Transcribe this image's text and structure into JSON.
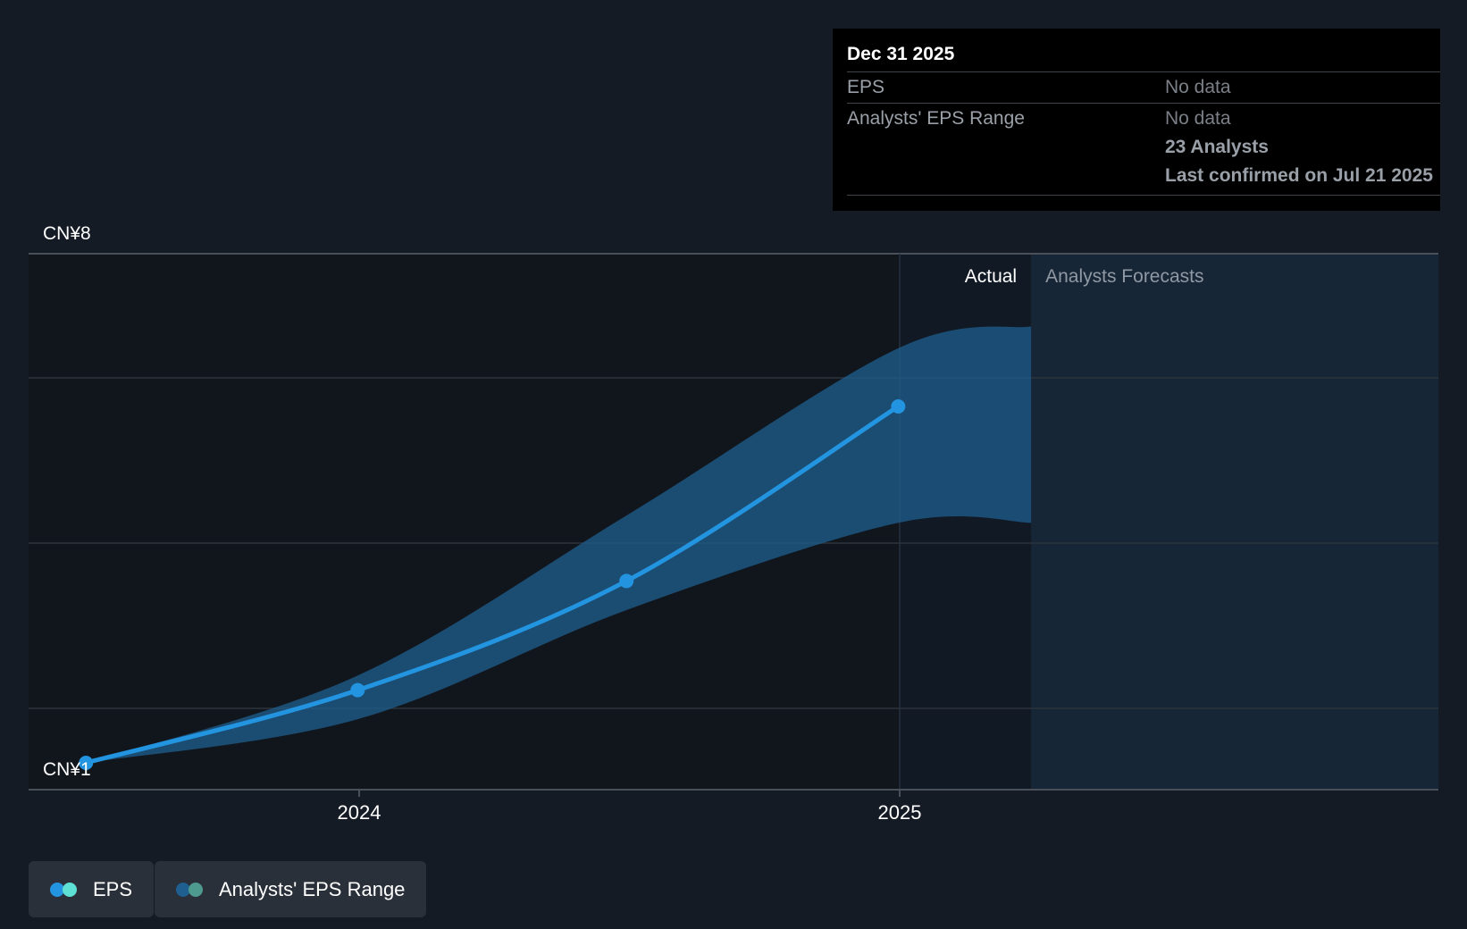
{
  "chart_data": {
    "type": "line",
    "y_top_label": "CN¥8",
    "y_bottom_label": "CN¥1",
    "ylim": [
      1,
      8
    ],
    "x_ticks": [
      "2024",
      "2025"
    ],
    "sections": {
      "actual_label": "Actual",
      "forecast_label": "Analysts Forecasts"
    },
    "series": [
      {
        "name": "EPS",
        "color": "#2394df",
        "points": [
          {
            "x": "2023-06-30",
            "y": 1.0
          },
          {
            "x": "2023-12-31",
            "y": 2.0
          },
          {
            "x": "2024-06-30",
            "y": 3.5
          },
          {
            "x": "2024-12-31",
            "y": 5.9
          }
        ]
      },
      {
        "name": "Analysts' EPS Range",
        "color": "#1f5f8f",
        "low": [
          {
            "x": "2023-06-30",
            "y": 1.0
          },
          {
            "x": "2023-12-31",
            "y": 1.6
          },
          {
            "x": "2024-06-30",
            "y": 3.1
          },
          {
            "x": "2024-12-31",
            "y": 4.3
          },
          {
            "x": "2025-03-31",
            "y": 4.3
          }
        ],
        "high": [
          {
            "x": "2023-06-30",
            "y": 1.0
          },
          {
            "x": "2023-12-31",
            "y": 2.2
          },
          {
            "x": "2024-06-30",
            "y": 4.4
          },
          {
            "x": "2024-12-31",
            "y": 6.7
          },
          {
            "x": "2025-03-31",
            "y": 7.0
          }
        ]
      }
    ],
    "grid": true
  },
  "tooltip": {
    "date": "Dec 31 2025",
    "eps_label": "EPS",
    "eps_value": "No data",
    "range_label": "Analysts' EPS Range",
    "range_value": "No data",
    "analysts": "23 Analysts",
    "confirmed": "Last confirmed on Jul 21 2025"
  },
  "legend": {
    "eps_label": "EPS",
    "range_label": "Analysts' EPS Range",
    "eps_colors": [
      "#2394df",
      "#5ee0d4"
    ],
    "range_colors": [
      "#1f5f8f",
      "#4e9a8f"
    ]
  }
}
